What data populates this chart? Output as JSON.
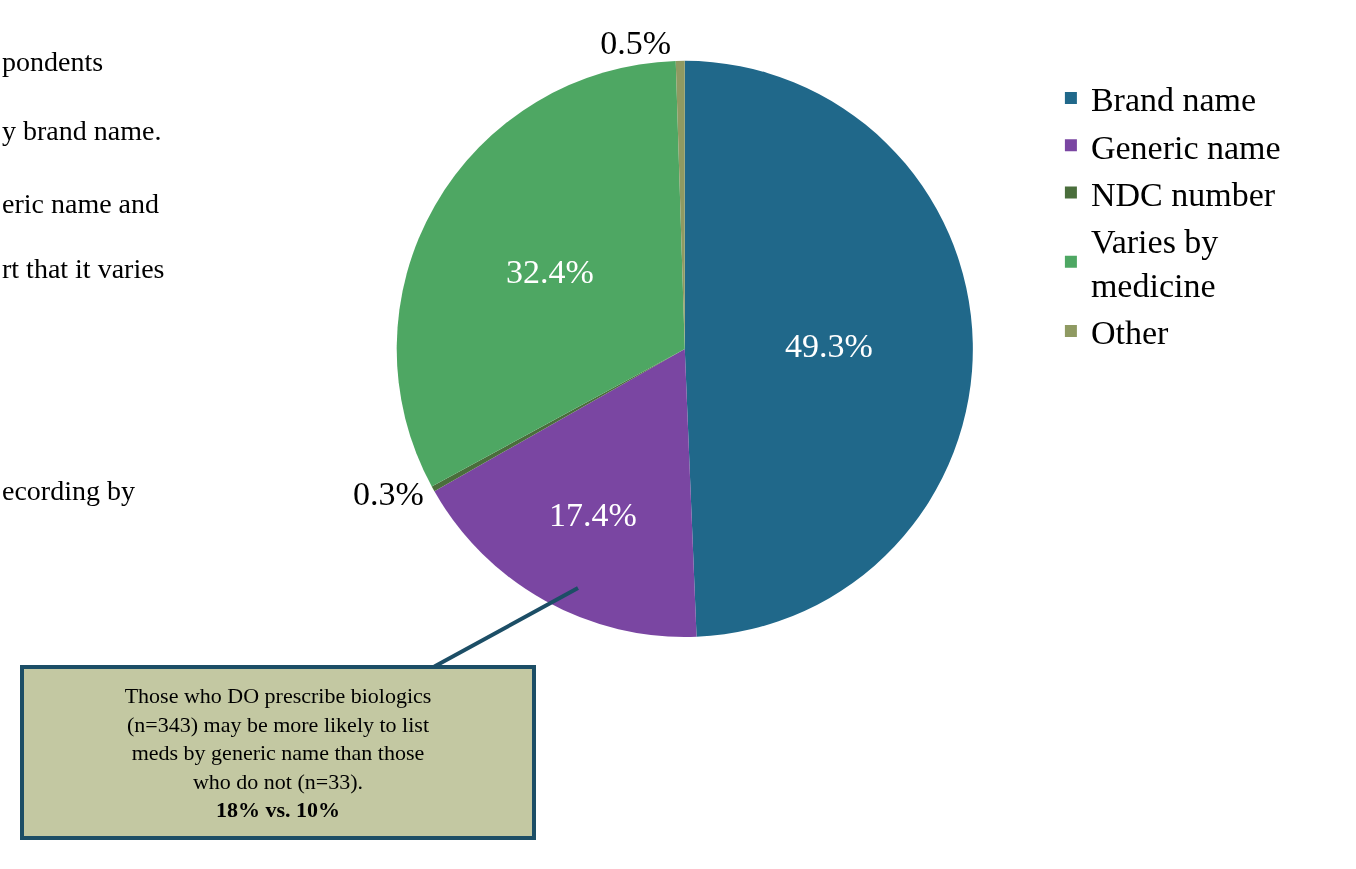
{
  "chart_data": {
    "type": "pie",
    "categories": [
      "Brand name",
      "Generic name",
      "NDC number",
      "Varies by\nmedicine",
      "Other"
    ],
    "values": [
      49.3,
      17.4,
      0.3,
      32.4,
      0.5
    ],
    "value_labels": [
      "49.3%",
      "17.4%",
      "0.3%",
      "32.4%",
      "0.5%"
    ],
    "colors": [
      "#20688a",
      "#7a46a2",
      "#4a6e3c",
      "#4ea763",
      "#8f9a62"
    ],
    "legend": "right",
    "annotations": [
      "pondents",
      "y brand name.",
      "eric name and",
      "rt that it varies",
      "ecording by",
      "Those who DO prescribe biologics\n(n=343) may be more likely to list\nmeds by generic name than those\nwho do not (n=33).",
      "18% vs. 10%"
    ]
  }
}
